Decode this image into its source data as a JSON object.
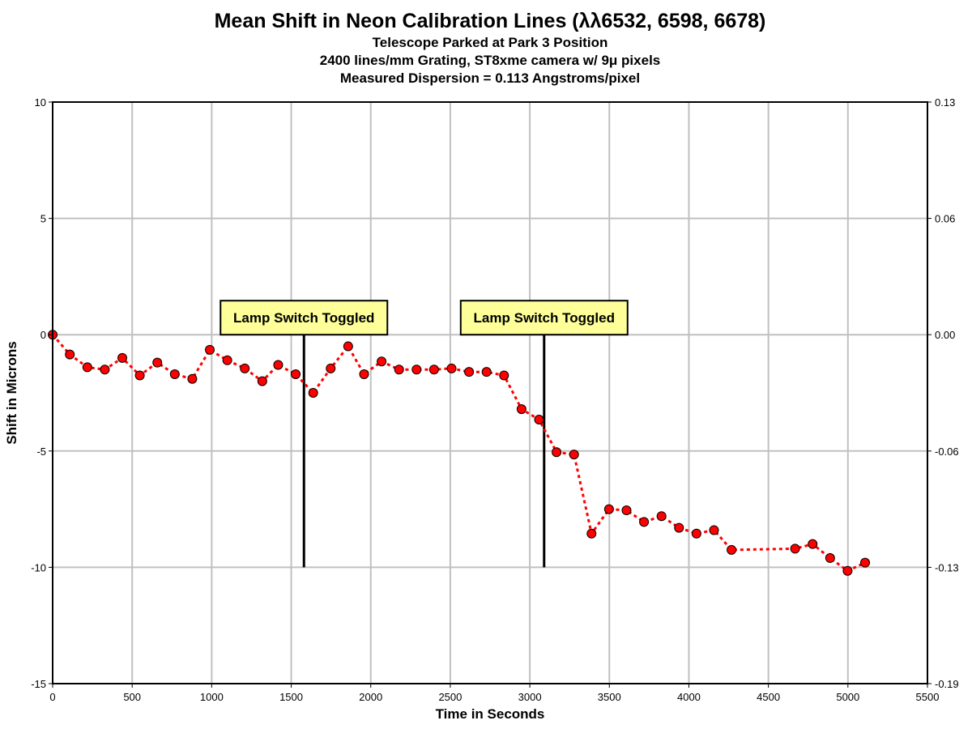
{
  "chart_data": {
    "type": "line",
    "title": "Mean Shift in Neon Calibration Lines (λλ6532, 6598, 6678)",
    "subtitles": [
      "Telescope Parked at Park 3 Position",
      "2400 lines/mm Grating, ST8xme camera w/ 9μ pixels",
      "Measured Dispersion = 0.113 Angstroms/pixel"
    ],
    "xlabel": "Time in Seconds",
    "ylabel": "Shift in Microns",
    "xlim": [
      0,
      5500
    ],
    "ylim": [
      -15,
      10
    ],
    "grid": true,
    "x_ticks": [
      0,
      500,
      1000,
      1500,
      2000,
      2500,
      3000,
      3500,
      4000,
      4500,
      5000,
      5500
    ],
    "y_ticks": [
      10,
      5,
      0,
      -5,
      -10,
      -15
    ],
    "y2_ticks": [
      {
        "at": 10,
        "label": "0.13"
      },
      {
        "at": 5,
        "label": "0.06"
      },
      {
        "at": 0,
        "label": "0.00"
      },
      {
        "at": -5,
        "label": "-0.06"
      },
      {
        "at": -10,
        "label": "-0.13"
      },
      {
        "at": -15,
        "label": "-0.19"
      }
    ],
    "series": [
      {
        "name": "Mean shift",
        "color": "#ff0000",
        "x": [
          0,
          108,
          218,
          328,
          438,
          548,
          658,
          768,
          878,
          988,
          1098,
          1208,
          1318,
          1418,
          1528,
          1638,
          1748,
          1858,
          1958,
          2068,
          2178,
          2288,
          2398,
          2508,
          2618,
          2728,
          2838,
          2948,
          3058,
          3168,
          3278,
          3388,
          3498,
          3608,
          3718,
          3828,
          3938,
          4048,
          4158,
          4268,
          4668,
          4778,
          4888,
          4998,
          5108
        ],
        "y": [
          0.0,
          -0.85,
          -1.4,
          -1.5,
          -1.0,
          -1.75,
          -1.2,
          -1.7,
          -1.9,
          -0.65,
          -1.1,
          -1.45,
          -2.0,
          -1.3,
          -1.7,
          -2.5,
          -1.45,
          -0.5,
          -1.7,
          -1.15,
          -1.5,
          -1.5,
          -1.5,
          -1.45,
          -1.6,
          -1.6,
          -1.75,
          -3.2,
          -3.65,
          -5.05,
          -5.15,
          -8.55,
          -7.5,
          -7.55,
          -8.05,
          -7.8,
          -8.3,
          -8.55,
          -8.4,
          -9.25,
          -9.2,
          -9.0,
          -9.6,
          -10.15,
          -9.8
        ]
      }
    ],
    "annotations": [
      {
        "label": "Lamp Switch Toggled",
        "x": 1580,
        "y_top": 0,
        "y_bottom": -10
      },
      {
        "label": "Lamp Switch Toggled",
        "x": 3090,
        "y_top": 0,
        "y_bottom": -10
      }
    ],
    "colors": {
      "marker_fill": "#ff0000",
      "marker_stroke": "#000000",
      "annotation_fill": "#ffff99",
      "grid": "#c0c0c0"
    }
  }
}
